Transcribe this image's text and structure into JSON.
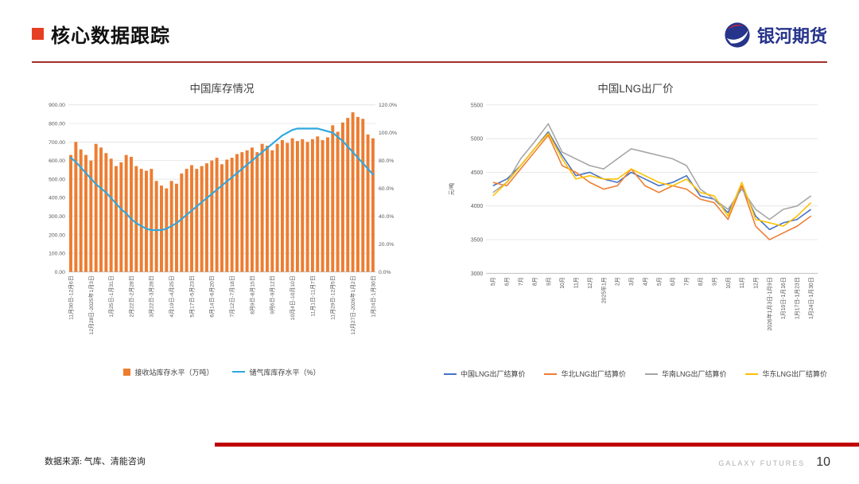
{
  "header": {
    "title": "核心数据跟踪",
    "logo_text": "银河期货"
  },
  "footer": {
    "source": "数据来源: 气库、清能咨询",
    "brand": "GALAXY FUTURES",
    "page_number": "10"
  },
  "colors": {
    "bullet_red": "#E63E23",
    "rule_red": "#A0302A",
    "bottom_bar_red": "#C00000",
    "logo_blue": "#27348B",
    "logo_red": "#D7282F",
    "bar_orange": "#ED7D31",
    "line_blue": "#2EA8E0",
    "lng_blue": "#4472C4",
    "lng_orange": "#ED7D31",
    "lng_gray": "#A5A5A5",
    "lng_yellow": "#FFC000"
  },
  "chart_data": [
    {
      "type": "bar",
      "subtype": "bar+line-dual-axis",
      "title": "中国库存情况",
      "x_tick_every": 4,
      "x_tick_labels": [
        "11月30日-12月6日",
        "12月28日-2025年1月3日",
        "1月25日-1月31日",
        "2月22日-2月28日",
        "3月22日-3月28日",
        "4月19日-4月25日",
        "5月17日-5月23日",
        "6月14日-6月20日",
        "7月12日-7月18日",
        "8月9日-8月15日",
        "9月6日-9月12日",
        "10月4日-10月10日",
        "11月1日-11月7日",
        "11月29日-12月5日",
        "12月27日-2026年1月2日",
        "1月24日-1月30日"
      ],
      "left_axis": {
        "min": 0,
        "max": 900,
        "step": 100
      },
      "right_axis": {
        "min": 0,
        "max": 1.2,
        "step": 0.2
      },
      "left_tick_labels": [
        "0.00",
        "100.00",
        "200.00",
        "300.00",
        "400.00",
        "500.00",
        "600.00",
        "700.00",
        "800.00",
        "900.00"
      ],
      "right_tick_labels": [
        "0.0%",
        "20.0%",
        "40.0%",
        "60.0%",
        "80.0%",
        "100.0%",
        "120.0%"
      ],
      "bar_series": {
        "name": "接收站库存水平（万吨）",
        "values": [
          630,
          700,
          660,
          630,
          600,
          690,
          670,
          640,
          610,
          570,
          590,
          630,
          620,
          570,
          555,
          545,
          555,
          490,
          465,
          450,
          490,
          475,
          530,
          555,
          575,
          555,
          570,
          585,
          600,
          615,
          580,
          605,
          615,
          635,
          645,
          655,
          670,
          645,
          690,
          680,
          655,
          690,
          710,
          695,
          720,
          705,
          715,
          700,
          715,
          730,
          710,
          725,
          790,
          755,
          805,
          830,
          860,
          835,
          825,
          740,
          720
        ]
      },
      "line_series": {
        "name": "储气库库存水平（%）",
        "values": [
          0.82,
          0.79,
          0.75,
          0.71,
          0.67,
          0.63,
          0.6,
          0.57,
          0.53,
          0.49,
          0.45,
          0.42,
          0.38,
          0.35,
          0.33,
          0.31,
          0.3,
          0.3,
          0.3,
          0.31,
          0.33,
          0.35,
          0.38,
          0.41,
          0.44,
          0.47,
          0.5,
          0.53,
          0.56,
          0.59,
          0.62,
          0.65,
          0.68,
          0.71,
          0.74,
          0.77,
          0.8,
          0.83,
          0.86,
          0.89,
          0.92,
          0.95,
          0.98,
          1.0,
          1.02,
          1.03,
          1.03,
          1.03,
          1.03,
          1.03,
          1.02,
          1.01,
          1.0,
          0.97,
          0.94,
          0.9,
          0.86,
          0.82,
          0.78,
          0.74,
          0.7
        ]
      },
      "legend_position": "bottom",
      "grid": true
    },
    {
      "type": "line",
      "title": "中国LNG出厂价",
      "ylabel": "元/吨",
      "ylim": [
        3000,
        5500
      ],
      "y_step": 500,
      "categories": [
        "5月",
        "6月",
        "7月",
        "8月",
        "9月",
        "10月",
        "11月",
        "12月",
        "2025年1月",
        "2月",
        "3月",
        "4月",
        "5月",
        "6月",
        "7月",
        "8月",
        "9月",
        "10月",
        "11月",
        "12月",
        "2026年1月3日-1月9日",
        "1月10日-1月16日",
        "1月17日-1月23日",
        "1月24日-1月30日"
      ],
      "series": [
        {
          "name": "中国LNG出厂结算价",
          "color_key": "lng_blue",
          "values": [
            4300,
            4400,
            4600,
            4850,
            5100,
            4750,
            4450,
            4500,
            4400,
            4350,
            4500,
            4400,
            4300,
            4350,
            4450,
            4150,
            4100,
            3900,
            4300,
            3850,
            3650,
            3750,
            3800,
            3950
          ]
        },
        {
          "name": "华北LNG出厂结算价",
          "color_key": "lng_orange",
          "values": [
            4350,
            4300,
            4550,
            4800,
            5050,
            4600,
            4500,
            4350,
            4250,
            4300,
            4550,
            4300,
            4200,
            4300,
            4250,
            4100,
            4050,
            3800,
            4300,
            3700,
            3500,
            3600,
            3700,
            3850
          ]
        },
        {
          "name": "华南LNG出厂结算价",
          "color_key": "lng_gray",
          "values": [
            4200,
            4350,
            4700,
            4950,
            5220,
            4800,
            4700,
            4600,
            4550,
            4700,
            4850,
            4800,
            4750,
            4700,
            4600,
            4250,
            4100,
            3950,
            4250,
            3950,
            3800,
            3950,
            4000,
            4150
          ]
        },
        {
          "name": "华东LNG出厂结算价",
          "color_key": "lng_yellow",
          "values": [
            4150,
            4350,
            4600,
            4850,
            5080,
            4700,
            4400,
            4450,
            4400,
            4400,
            4550,
            4450,
            4350,
            4300,
            4400,
            4200,
            4150,
            3850,
            4350,
            3800,
            3750,
            3700,
            3850,
            4050
          ]
        }
      ],
      "legend_position": "bottom",
      "grid": true
    }
  ]
}
